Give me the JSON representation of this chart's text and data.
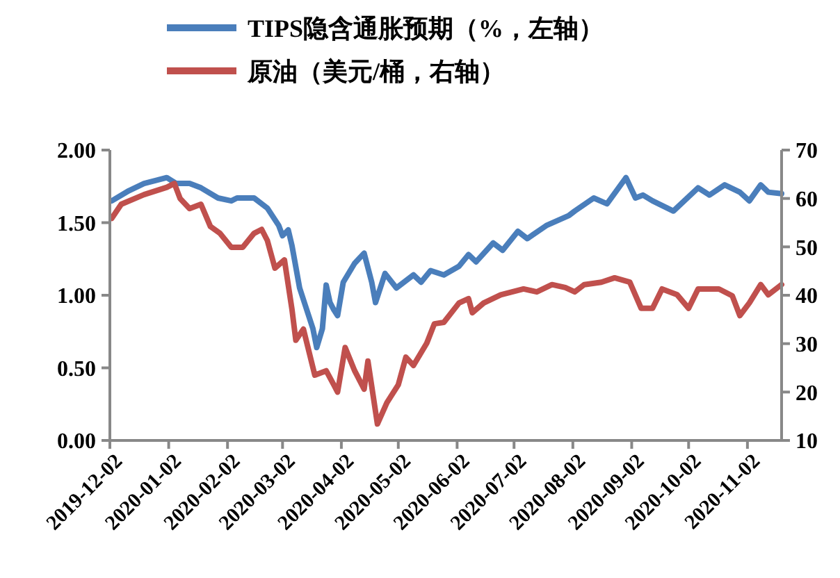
{
  "chart_data": {
    "type": "line",
    "legend": "top",
    "grid": false,
    "line_style": "solid",
    "marker": "none",
    "xlim": [
      "2019-12-02",
      "2020-11-20"
    ],
    "xticks": [
      "2019-12-02",
      "2020-01-02",
      "2020-02-02",
      "2020-03-02",
      "2020-04-02",
      "2020-05-02",
      "2020-06-02",
      "2020-07-02",
      "2020-08-02",
      "2020-09-02",
      "2020-10-02",
      "2020-11-02"
    ],
    "ylim": [
      0,
      2
    ],
    "yticks": [
      {
        "value": 0,
        "label": "0.00"
      },
      {
        "value": 0.5,
        "label": "0.50"
      },
      {
        "value": 1,
        "label": "1.00"
      },
      {
        "value": 1.5,
        "label": "1.50"
      },
      {
        "value": 2,
        "label": "2.00"
      }
    ],
    "y2lim": [
      10,
      70
    ],
    "y2ticks": [
      10,
      20,
      30,
      40,
      50,
      60,
      70
    ],
    "series": [
      {
        "name": "TIPS隐含通胀预期（%，左轴）",
        "color": "#4a7ebb",
        "x": [
          "2019-12-03",
          "2019-12-12",
          "2019-12-20",
          "2020-01-01",
          "2020-01-06",
          "2020-01-13",
          "2020-01-19",
          "2020-01-28",
          "2020-02-04",
          "2020-02-07",
          "2020-02-16",
          "2020-02-23",
          "2020-02-29",
          "2020-03-02",
          "2020-03-05",
          "2020-03-07",
          "2020-03-11",
          "2020-03-14",
          "2020-03-18",
          "2020-03-20",
          "2020-03-23",
          "2020-03-25",
          "2020-03-27",
          "2020-03-29",
          "2020-03-31",
          "2020-04-03",
          "2020-04-09",
          "2020-04-14",
          "2020-04-18",
          "2020-04-20",
          "2020-04-25",
          "2020-05-01",
          "2020-05-10",
          "2020-05-14",
          "2020-05-19",
          "2020-05-26",
          "2020-06-03",
          "2020-06-08",
          "2020-06-12",
          "2020-06-21",
          "2020-06-26",
          "2020-07-04",
          "2020-07-09",
          "2020-07-19",
          "2020-07-31",
          "2020-08-03",
          "2020-08-13",
          "2020-08-20",
          "2020-08-30",
          "2020-09-04",
          "2020-09-08",
          "2020-09-13",
          "2020-09-24",
          "2020-10-07",
          "2020-10-13",
          "2020-10-21",
          "2020-10-29",
          "2020-11-03",
          "2020-11-09",
          "2020-11-13",
          "2020-11-20"
        ],
        "values": [
          1.65,
          1.72,
          1.77,
          1.81,
          1.77,
          1.77,
          1.74,
          1.67,
          1.65,
          1.67,
          1.67,
          1.6,
          1.48,
          1.41,
          1.45,
          1.34,
          1.05,
          0.93,
          0.77,
          0.64,
          0.77,
          1.07,
          0.95,
          0.9,
          0.86,
          1.09,
          1.22,
          1.29,
          1.09,
          0.95,
          1.15,
          1.05,
          1.14,
          1.09,
          1.17,
          1.14,
          1.2,
          1.28,
          1.23,
          1.36,
          1.31,
          1.44,
          1.39,
          1.48,
          1.55,
          1.58,
          1.67,
          1.63,
          1.81,
          1.67,
          1.69,
          1.65,
          1.58,
          1.74,
          1.69,
          1.76,
          1.71,
          1.65,
          1.76,
          1.71,
          1.7
        ]
      },
      {
        "name": "原油（美元/桶，右轴）",
        "color": "#c0504d",
        "axis": "y2",
        "x": [
          "2019-12-03",
          "2019-12-08",
          "2019-12-20",
          "2020-01-01",
          "2020-01-05",
          "2020-01-08",
          "2020-01-13",
          "2020-01-19",
          "2020-01-24",
          "2020-01-29",
          "2020-02-04",
          "2020-02-10",
          "2020-02-16",
          "2020-02-20",
          "2020-02-23",
          "2020-02-27",
          "2020-03-03",
          "2020-03-07",
          "2020-03-09",
          "2020-03-13",
          "2020-03-19",
          "2020-03-25",
          "2020-03-29",
          "2020-03-31",
          "2020-04-04",
          "2020-04-09",
          "2020-04-14",
          "2020-04-16",
          "2020-04-21",
          "2020-04-26",
          "2020-05-02",
          "2020-05-06",
          "2020-05-10",
          "2020-05-17",
          "2020-05-21",
          "2020-05-26",
          "2020-06-03",
          "2020-06-08",
          "2020-06-10",
          "2020-06-16",
          "2020-06-25",
          "2020-07-07",
          "2020-07-14",
          "2020-07-22",
          "2020-07-29",
          "2020-08-03",
          "2020-08-08",
          "2020-08-17",
          "2020-08-24",
          "2020-09-01",
          "2020-09-07",
          "2020-09-13",
          "2020-09-18",
          "2020-09-26",
          "2020-10-02",
          "2020-10-07",
          "2020-10-18",
          "2020-10-25",
          "2020-10-29",
          "2020-11-03",
          "2020-11-09",
          "2020-11-13",
          "2020-11-20"
        ],
        "values": [
          55.9,
          58.8,
          60.8,
          62.3,
          63.1,
          60,
          57.9,
          58.8,
          54.2,
          52.8,
          49.9,
          49.9,
          52.8,
          53.6,
          51.3,
          45.6,
          47.3,
          37,
          30.7,
          33,
          23.5,
          24.4,
          21.5,
          20,
          29.2,
          24.4,
          20.6,
          26.4,
          13.4,
          17.8,
          21.5,
          27.2,
          25.5,
          30.1,
          34.1,
          34.4,
          38.4,
          39.3,
          36.4,
          38.4,
          40.1,
          41.3,
          40.7,
          42.2,
          41.6,
          40.7,
          42.2,
          42.7,
          43.6,
          42.7,
          37.3,
          37.3,
          41.3,
          40.1,
          37.3,
          41.3,
          41.3,
          39.9,
          35.8,
          38.4,
          42.2,
          40.1,
          42.2
        ]
      }
    ]
  }
}
